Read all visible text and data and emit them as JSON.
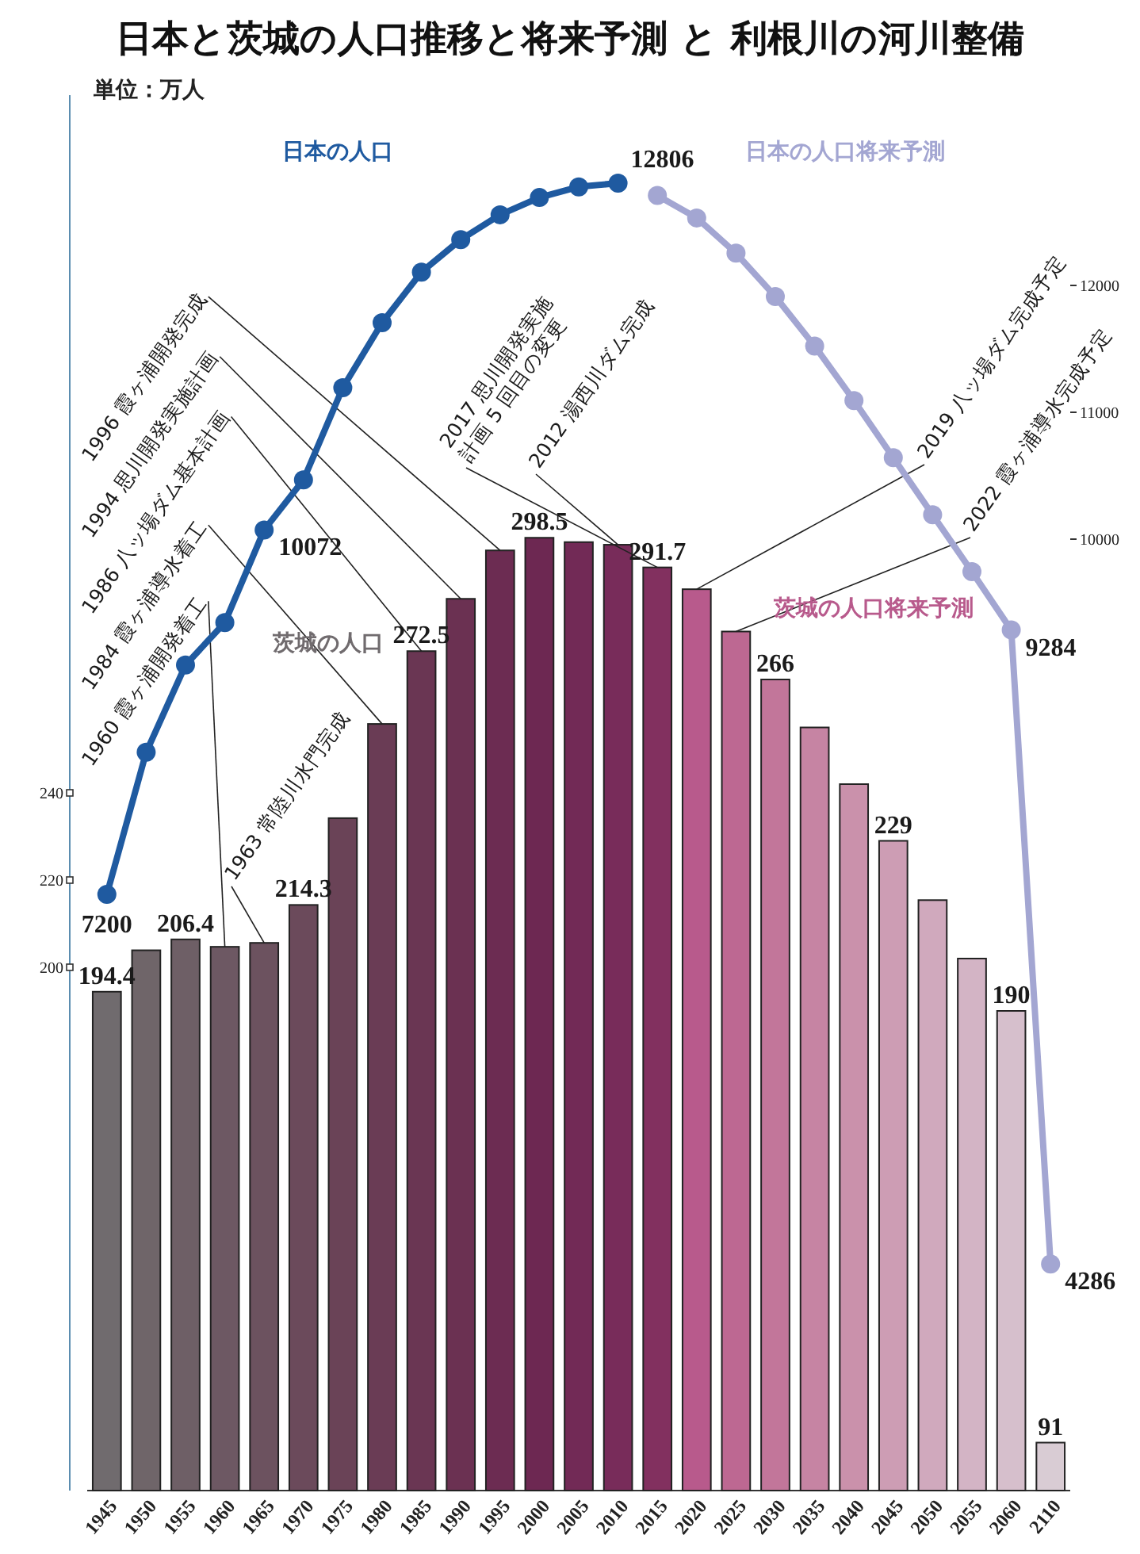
{
  "chart_data": {
    "type": "bar",
    "title": "日本と茨城の人口推移と将来予測 と 利根川の河川整備",
    "subtitle": "単位：万人",
    "categories": [
      "1945",
      "1950",
      "1955",
      "1960",
      "1965",
      "1970",
      "1975",
      "1980",
      "1985",
      "1990",
      "1995",
      "2000",
      "2005",
      "2010",
      "2015",
      "2020",
      "2025",
      "2030",
      "2035",
      "2040",
      "2045",
      "2050",
      "2055",
      "2060",
      "2110"
    ],
    "series": [
      {
        "name": "茨城の人口",
        "values": [
          194.4,
          203.9,
          206.4,
          204.7,
          205.6,
          214.3,
          234.2,
          255.8,
          272.5,
          284.5,
          295.6,
          298.5,
          297.5,
          296.9,
          291.7,
          null,
          null,
          null,
          null,
          null,
          null,
          null,
          null,
          null,
          null
        ],
        "value_labels": [
          "194.4",
          null,
          "206.4",
          null,
          null,
          "214.3",
          null,
          null,
          "272.5",
          null,
          null,
          "298.5",
          null,
          null,
          "291.7",
          null,
          null,
          null,
          null,
          null,
          null,
          null,
          null,
          null,
          null
        ],
        "colors": [
          "#706b6e",
          "#6f6569",
          "#6e5f66",
          "#6d5863",
          "#6c525f",
          "#6b4a5b",
          "#6a4357",
          "#6a3c55",
          "#6a3653",
          "#6b3152",
          "#6c2c52",
          "#6d2852",
          "#722a56",
          "#782c5a",
          "#82305f",
          null,
          null,
          null,
          null,
          null,
          null,
          null,
          null,
          null,
          null
        ]
      },
      {
        "name": "茨城の人口将来予測",
        "values": [
          null,
          null,
          null,
          null,
          null,
          null,
          null,
          null,
          null,
          null,
          null,
          null,
          null,
          null,
          null,
          286.7,
          277,
          266,
          255,
          242,
          229,
          215.4,
          202,
          190,
          91
        ],
        "value_labels": [
          null,
          null,
          null,
          null,
          null,
          null,
          null,
          null,
          null,
          null,
          null,
          null,
          null,
          null,
          null,
          null,
          null,
          "266",
          null,
          null,
          "229",
          null,
          null,
          "190",
          "91"
        ],
        "colors": [
          null,
          null,
          null,
          null,
          null,
          null,
          null,
          null,
          null,
          null,
          null,
          null,
          null,
          null,
          null,
          "#b85a8c",
          "#bd6892",
          "#c2769a",
          "#c684a3",
          "#ca91ab",
          "#cd9db4",
          "#d0a9bd",
          "#d3b4c5",
          "#d6bfcc",
          "#d9ccd4"
        ]
      },
      {
        "name": "日本の人口",
        "type": "line",
        "axis": "y2",
        "color": "#1f5aa0",
        "values": [
          7200,
          8320,
          9008,
          9342,
          10072,
          10467,
          11194,
          11706,
          12105,
          12361,
          12557,
          12693,
          12777,
          12806,
          null,
          null,
          null,
          null,
          null,
          null,
          null,
          null,
          null,
          null,
          null
        ],
        "value_labels": [
          "7200",
          null,
          null,
          null,
          "10072",
          null,
          null,
          null,
          null,
          null,
          null,
          null,
          null,
          "12806",
          null,
          null,
          null,
          null,
          null,
          null,
          null,
          null,
          null,
          null,
          null
        ]
      },
      {
        "name": "日本の人口将来予測",
        "type": "line",
        "axis": "y2",
        "color": "#a3a6d2",
        "values": [
          null,
          null,
          null,
          null,
          null,
          null,
          null,
          null,
          null,
          null,
          null,
          null,
          null,
          null,
          12709,
          12532,
          12254,
          11913,
          11522,
          11092,
          10642,
          10192,
          9744,
          9284,
          4286
        ],
        "value_labels": [
          null,
          null,
          null,
          null,
          null,
          null,
          null,
          null,
          null,
          null,
          null,
          null,
          null,
          null,
          null,
          null,
          null,
          null,
          null,
          null,
          null,
          null,
          null,
          "9284",
          "4286"
        ]
      }
    ],
    "ylim": [
      80,
      400
    ],
    "yticks": [
      200,
      220,
      240
    ],
    "y2lim": [
      2500,
      13500
    ],
    "y2ticks": [
      10000,
      11000,
      12000
    ],
    "marker": "circle",
    "annotations": [
      {
        "text": "1960 霞ヶ浦開発着工",
        "x": "1960",
        "y": 204.7
      },
      {
        "text": "1963 常陸川水門完成",
        "x": "1965",
        "y": 205.6
      },
      {
        "text": "1984 霞ヶ浦導水着工",
        "x": "1980",
        "y": 255.8
      },
      {
        "text": "1986 八ッ場ダム基本計画",
        "x": "1985",
        "y": 272.5
      },
      {
        "text": "1994 思川開発実施計画",
        "x": "1990",
        "y": 284.5
      },
      {
        "text": "1996 霞ヶ浦開発完成",
        "x": "1995",
        "y": 295.6
      },
      {
        "text": "2012 湯西川ダム完成",
        "x": "2010",
        "y": 296.9
      },
      {
        "text": "2017 思川開発実施\n計画 5 回目の変更",
        "x": "2015",
        "y": 291.7
      },
      {
        "text": "2019 八ッ場ダム完成予定",
        "x": "2020",
        "y": 286.7
      },
      {
        "text": "2022 霞ヶ浦導水完成予定",
        "x": "2025",
        "y": 277
      }
    ]
  }
}
